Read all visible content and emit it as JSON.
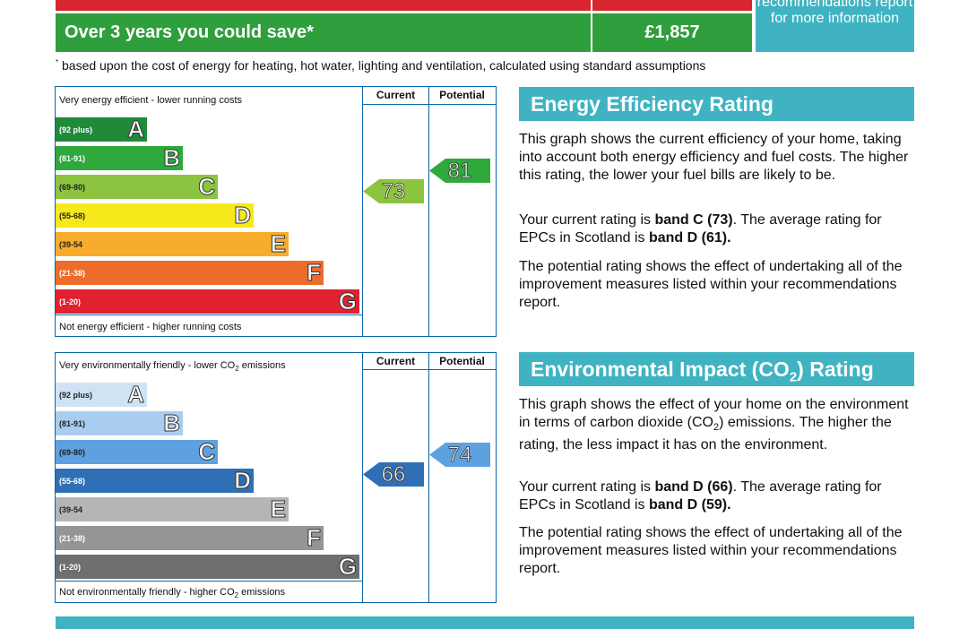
{
  "top": {
    "savings_label": "Over 3 years you could save*",
    "savings_value": "£1,857",
    "teal_box_text": "recommendations report for more information",
    "footnote_mark": "*",
    "footnote": "based upon the cost of energy for heating, hot water, lighting and ventilation, calculated using standard assumptions"
  },
  "energy": {
    "top_label": "Very energy efficient - lower running costs",
    "bottom_label": "Not energy efficient - higher running costs",
    "current_header": "Current",
    "potential_header": "Potential",
    "bands": [
      {
        "range": "(92 plus)",
        "letter": "A",
        "color": "#1e8a3a"
      },
      {
        "range": "(81-91)",
        "letter": "B",
        "color": "#2fa83c"
      },
      {
        "range": "(69-80)",
        "letter": "C",
        "color": "#8cc43f"
      },
      {
        "range": "(55-68)",
        "letter": "D",
        "color": "#f5e91b"
      },
      {
        "range": "(39-54",
        "letter": "E",
        "color": "#f7ac2b"
      },
      {
        "range": "(21-38)",
        "letter": "F",
        "color": "#ed6c2a"
      },
      {
        "range": "(1-20)",
        "letter": "G",
        "color": "#e12030"
      }
    ],
    "current": "73",
    "current_color": "#8cc43f",
    "potential": "81",
    "potential_color": "#2fa83c",
    "heading": "Energy Efficiency Rating",
    "para1": "This graph shows the current efficiency of your home, taking into account both energy efficiency and fuel costs. The higher this rating, the lower your fuel bills are likely to be.",
    "para2_pre": "Your current rating is ",
    "para2_band": "band C (73)",
    "para2_mid": ". The average rating for EPCs in Scotland is ",
    "para2_avg": "band D (61).",
    "para3": "The potential rating shows the effect of undertaking all of the improvement measures listed within your recommendations report."
  },
  "environment": {
    "top_label_pre": "Very environmentally friendly - lower CO",
    "top_label_sub": "2",
    "top_label_post": " emissions",
    "bottom_label_pre": "Not environmentally friendly - higher CO",
    "bottom_label_sub": "2",
    "bottom_label_post": " emissions",
    "current_header": "Current",
    "potential_header": "Potential",
    "bands": [
      {
        "range": "(92 plus)",
        "letter": "A",
        "color": "#cfe3f5"
      },
      {
        "range": "(81-91)",
        "letter": "B",
        "color": "#a9cdef"
      },
      {
        "range": "(69-80)",
        "letter": "C",
        "color": "#5ea1e0"
      },
      {
        "range": "(55-68)",
        "letter": "D",
        "color": "#2f6fb5"
      },
      {
        "range": "(39-54",
        "letter": "E",
        "color": "#b5b5b5"
      },
      {
        "range": "(21-38)",
        "letter": "F",
        "color": "#959595"
      },
      {
        "range": "(1-20)",
        "letter": "G",
        "color": "#6f6f6f"
      }
    ],
    "current": "66",
    "current_color": "#2f6fb5",
    "potential": "74",
    "potential_color": "#5ea1e0",
    "heading_pre": "Environmental Impact (CO",
    "heading_sub": "2",
    "heading_post": ") Rating",
    "para1_pre": "This graph shows the effect of your home on the environment in terms of carbon dioxide (CO",
    "para1_sub": "2",
    "para1_post": ") emissions. The higher the rating, the less impact it has on the environment.",
    "para2_pre": "Your current rating is ",
    "para2_band": "band D (66)",
    "para2_mid": ". The average rating for EPCs in Scotland is ",
    "para2_avg": "band D (59).",
    "para3": "The potential rating shows the effect of undertaking all of the improvement measures listed within your recommendations report."
  }
}
